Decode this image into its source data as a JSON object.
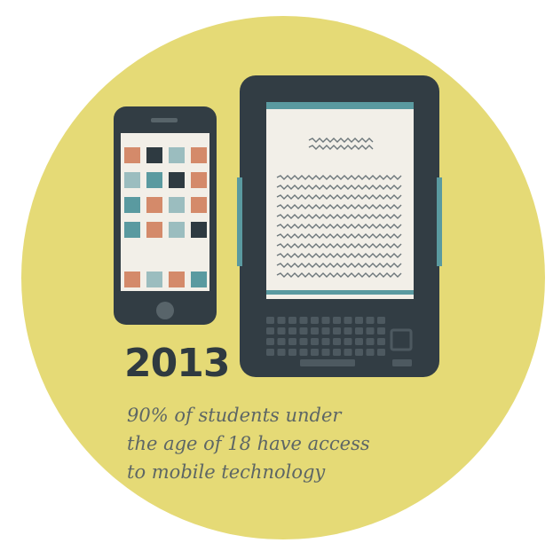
{
  "infographic": {
    "year": "2013",
    "caption_lines": [
      "90% of students under",
      "the age of 18 have access",
      "to mobile technology"
    ]
  },
  "colors": {
    "background_circle": "#e5da76",
    "device_body": "#323d44",
    "screen": "#f2efe8",
    "accent_teal": "#5a9aa0",
    "tile_orange": "#d48a6a",
    "tile_light_blue": "#9bbdbf",
    "tile_dark": "#2e3a41",
    "text_dark": "#2f3a40",
    "text_caption": "#5d6665"
  },
  "icons": [
    "smartphone-icon",
    "ereader-icon",
    "keyboard-icon"
  ]
}
